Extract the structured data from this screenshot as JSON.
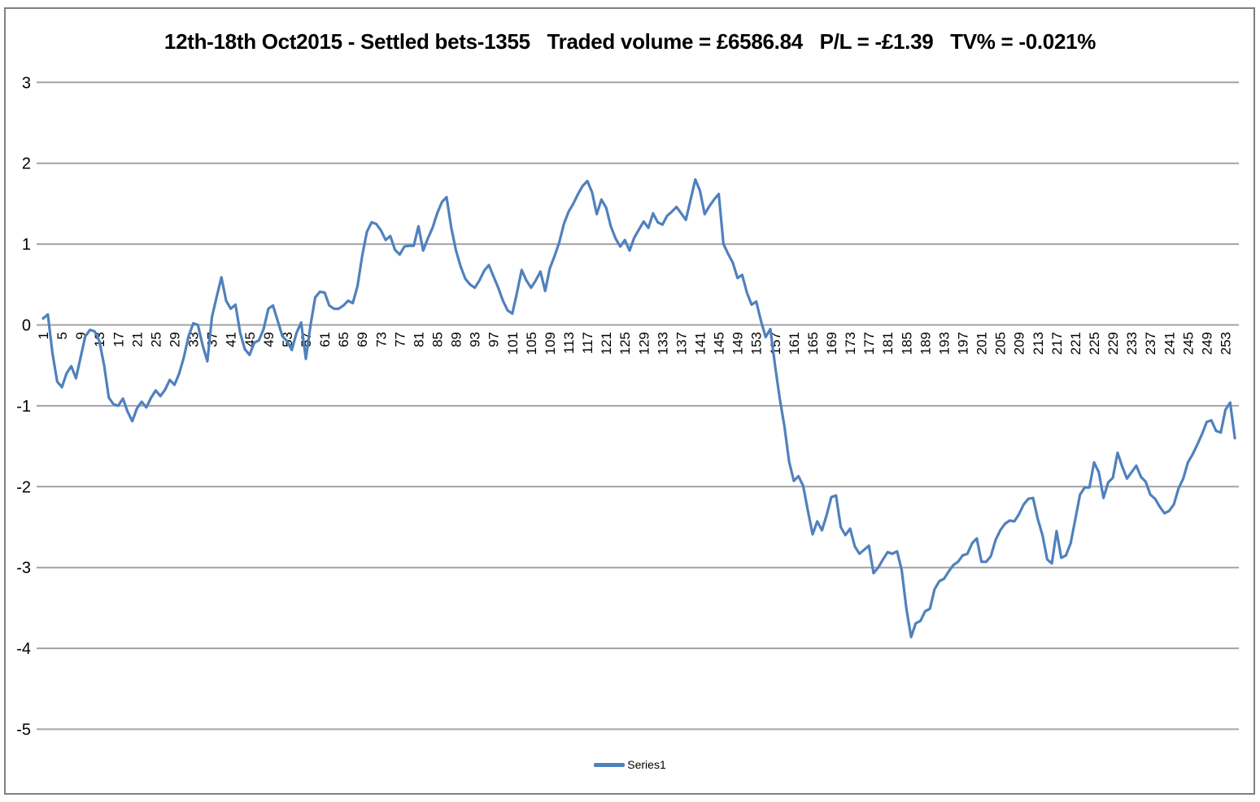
{
  "title": "12th-18th Oct2015 - Settled bets-1355   Traded volume = £6586.84   P/L = -£1.39   TV% = -0.021%",
  "colors": {
    "series_line": "#4F81BD",
    "gridline": "#A3A3A3",
    "frame_border": "#7f7f7f",
    "text": "#000000",
    "background": "#ffffff"
  },
  "legend": {
    "label": "Series1",
    "position": "bottom-center"
  },
  "chart_data": {
    "type": "line",
    "title": "12th-18th Oct2015 - Settled bets-1355   Traded volume = £6586.84   P/L = -£1.39   TV% = -0.021%",
    "xlabel": "",
    "ylabel": "",
    "ylim": [
      -5,
      3
    ],
    "y_ticks": [
      3,
      2,
      1,
      0,
      -1,
      -2,
      -3,
      -4,
      -5
    ],
    "grid": "horizontal",
    "legend_position": "bottom-center",
    "x_tick_step": 4,
    "x_tick_labels": [
      "1",
      "5",
      "9",
      "13",
      "17",
      "21",
      "25",
      "29",
      "33",
      "37",
      "41",
      "45",
      "49",
      "53",
      "57",
      "61",
      "65",
      "69",
      "73",
      "77",
      "81",
      "85",
      "89",
      "93",
      "97",
      "101",
      "105",
      "109",
      "113",
      "117",
      "121",
      "125",
      "129",
      "133",
      "137",
      "141",
      "145",
      "149",
      "153",
      "157",
      "161",
      "165",
      "169",
      "173",
      "177",
      "181",
      "185",
      "189",
      "193",
      "197",
      "201",
      "205",
      "209",
      "213",
      "217",
      "221",
      "225",
      "229",
      "233",
      "237",
      "241",
      "245",
      "249",
      "253"
    ],
    "series": [
      {
        "name": "Series1",
        "color": "#4F81BD",
        "x_start": 1,
        "values": [
          0.08,
          0.13,
          -0.35,
          -0.7,
          -0.77,
          -0.6,
          -0.51,
          -0.66,
          -0.4,
          -0.14,
          -0.06,
          -0.08,
          -0.2,
          -0.5,
          -0.9,
          -0.98,
          -1.0,
          -0.91,
          -1.07,
          -1.19,
          -1.03,
          -0.95,
          -1.02,
          -0.9,
          -0.81,
          -0.88,
          -0.8,
          -0.68,
          -0.74,
          -0.6,
          -0.4,
          -0.14,
          0.02,
          0.0,
          -0.25,
          -0.45,
          0.1,
          0.35,
          0.59,
          0.3,
          0.2,
          0.25,
          -0.1,
          -0.3,
          -0.37,
          -0.22,
          -0.19,
          -0.05,
          0.2,
          0.24,
          0.05,
          -0.14,
          -0.2,
          -0.31,
          -0.1,
          0.03,
          -0.42,
          0.0,
          0.34,
          0.41,
          0.4,
          0.24,
          0.2,
          0.2,
          0.24,
          0.3,
          0.27,
          0.48,
          0.85,
          1.15,
          1.27,
          1.25,
          1.17,
          1.05,
          1.1,
          0.93,
          0.87,
          0.97,
          0.98,
          0.98,
          1.22,
          0.92,
          1.07,
          1.2,
          1.38,
          1.52,
          1.58,
          1.2,
          0.92,
          0.72,
          0.57,
          0.5,
          0.46,
          0.55,
          0.67,
          0.74,
          0.6,
          0.46,
          0.3,
          0.18,
          0.14,
          0.4,
          0.68,
          0.55,
          0.46,
          0.55,
          0.66,
          0.42,
          0.7,
          0.85,
          1.02,
          1.25,
          1.4,
          1.5,
          1.62,
          1.72,
          1.78,
          1.64,
          1.37,
          1.55,
          1.45,
          1.22,
          1.07,
          0.97,
          1.05,
          0.92,
          1.08,
          1.18,
          1.28,
          1.2,
          1.38,
          1.27,
          1.24,
          1.35,
          1.4,
          1.46,
          1.38,
          1.3,
          1.55,
          1.8,
          1.66,
          1.37,
          1.47,
          1.55,
          1.62,
          1.0,
          0.88,
          0.77,
          0.58,
          0.62,
          0.4,
          0.25,
          0.29,
          0.05,
          -0.15,
          -0.05,
          -0.5,
          -0.91,
          -1.25,
          -1.69,
          -1.93,
          -1.87,
          -1.99,
          -2.3,
          -2.59,
          -2.43,
          -2.54,
          -2.35,
          -2.13,
          -2.11,
          -2.5,
          -2.6,
          -2.52,
          -2.74,
          -2.83,
          -2.78,
          -2.73,
          -3.07,
          -3.0,
          -2.9,
          -2.81,
          -2.83,
          -2.8,
          -3.03,
          -3.51,
          -3.86,
          -3.69,
          -3.66,
          -3.54,
          -3.51,
          -3.27,
          -3.17,
          -3.14,
          -3.05,
          -2.97,
          -2.93,
          -2.85,
          -2.83,
          -2.7,
          -2.64,
          -2.93,
          -2.93,
          -2.86,
          -2.66,
          -2.54,
          -2.46,
          -2.42,
          -2.43,
          -2.34,
          -2.22,
          -2.15,
          -2.14,
          -2.4,
          -2.6,
          -2.9,
          -2.95,
          -2.55,
          -2.88,
          -2.85,
          -2.7,
          -2.4,
          -2.1,
          -2.01,
          -2.01,
          -1.7,
          -1.82,
          -2.14,
          -1.95,
          -1.89,
          -1.58,
          -1.75,
          -1.9,
          -1.82,
          -1.74,
          -1.88,
          -1.94,
          -2.1,
          -2.15,
          -2.25,
          -2.33,
          -2.3,
          -2.22,
          -2.02,
          -1.9,
          -1.7,
          -1.6,
          -1.48,
          -1.35,
          -1.2,
          -1.18,
          -1.31,
          -1.33,
          -1.05,
          -0.96,
          -1.4
        ]
      }
    ]
  }
}
